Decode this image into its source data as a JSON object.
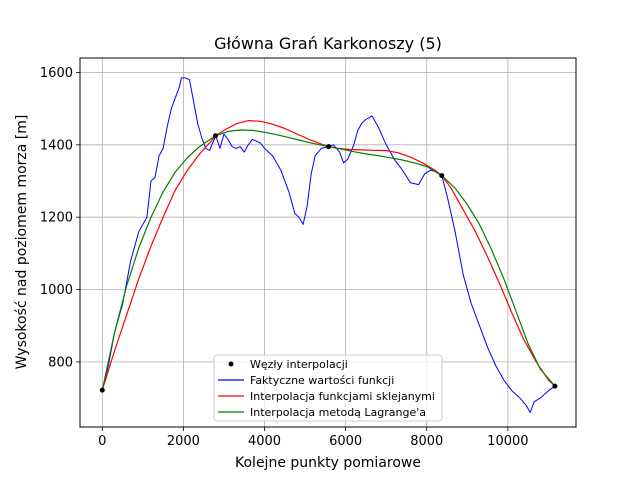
{
  "chart_data": {
    "type": "line",
    "title": "Główna Grań Karkonoszy (5)",
    "xlabel": "Kolejne punkty pomiarowe",
    "ylabel": "Wysokość nad poziomem morza [m]",
    "xlim": [
      -550,
      11680
    ],
    "ylim": [
      620,
      1640
    ],
    "xticks": [
      0,
      2000,
      4000,
      6000,
      8000,
      10000
    ],
    "yticks": [
      800,
      1000,
      1200,
      1400,
      1600
    ],
    "grid": true,
    "legend_position": "lower center",
    "nodes": {
      "name": "Węzły interpolacji",
      "color": "#000000",
      "x": [
        0,
        2790,
        5580,
        8370,
        11160
      ],
      "y": [
        722,
        1425,
        1395,
        1315,
        733
      ]
    },
    "series": [
      {
        "name": "Faktyczne wartości funkcji",
        "color": "#0000ff",
        "x": [
          0,
          150,
          300,
          500,
          700,
          900,
          1100,
          1200,
          1300,
          1400,
          1500,
          1600,
          1700,
          1800,
          1900,
          1950,
          2050,
          2150,
          2250,
          2350,
          2450,
          2550,
          2650,
          2700,
          2800,
          2900,
          3000,
          3100,
          3200,
          3300,
          3400,
          3500,
          3600,
          3700,
          3800,
          3900,
          4000,
          4200,
          4400,
          4600,
          4750,
          4850,
          4950,
          5050,
          5150,
          5250,
          5400,
          5580,
          5700,
          5850,
          5950,
          6050,
          6200,
          6300,
          6400,
          6500,
          6650,
          6800,
          7000,
          7200,
          7400,
          7600,
          7800,
          7950,
          8100,
          8250,
          8370,
          8500,
          8700,
          8900,
          9100,
          9300,
          9500,
          9700,
          9900,
          10100,
          10300,
          10450,
          10550,
          10650,
          10800,
          11000,
          11160
        ],
        "y": [
          722,
          790,
          880,
          960,
          1080,
          1160,
          1200,
          1300,
          1310,
          1370,
          1390,
          1450,
          1500,
          1530,
          1560,
          1585,
          1585,
          1580,
          1520,
          1460,
          1420,
          1390,
          1385,
          1400,
          1425,
          1390,
          1430,
          1415,
          1395,
          1390,
          1395,
          1380,
          1400,
          1415,
          1410,
          1405,
          1390,
          1370,
          1330,
          1270,
          1210,
          1200,
          1180,
          1230,
          1320,
          1370,
          1390,
          1395,
          1400,
          1380,
          1350,
          1360,
          1400,
          1440,
          1460,
          1470,
          1480,
          1450,
          1400,
          1360,
          1330,
          1295,
          1290,
          1320,
          1330,
          1325,
          1315,
          1260,
          1160,
          1040,
          960,
          900,
          840,
          790,
          750,
          720,
          700,
          680,
          660,
          690,
          700,
          720,
          733
        ]
      },
      {
        "name": "Interpolacja funkcjami sklejanymi",
        "color": "#ff0000",
        "x": [
          0,
          300,
          600,
          900,
          1200,
          1500,
          1800,
          2100,
          2400,
          2700,
          2790,
          3000,
          3300,
          3600,
          3900,
          4200,
          4500,
          4800,
          5100,
          5400,
          5580,
          5800,
          6100,
          6400,
          6700,
          7000,
          7300,
          7600,
          7900,
          8200,
          8370,
          8600,
          8900,
          9200,
          9500,
          9800,
          10100,
          10400,
          10700,
          11000,
          11160
        ],
        "y": [
          722,
          830,
          930,
          1030,
          1120,
          1200,
          1275,
          1330,
          1375,
          1412,
          1425,
          1440,
          1458,
          1467,
          1465,
          1457,
          1445,
          1430,
          1415,
          1402,
          1395,
          1390,
          1387,
          1386,
          1385,
          1384,
          1378,
          1366,
          1350,
          1330,
          1315,
          1280,
          1220,
          1160,
          1090,
          1015,
          935,
          860,
          800,
          750,
          733
        ]
      },
      {
        "name": "Interpolacja metodą Lagrange'a",
        "color": "#008000",
        "x": [
          0,
          300,
          600,
          900,
          1200,
          1500,
          1800,
          2100,
          2400,
          2790,
          3100,
          3400,
          3700,
          4000,
          4300,
          4600,
          4900,
          5200,
          5580,
          5900,
          6200,
          6500,
          6800,
          7100,
          7400,
          7700,
          8000,
          8370,
          8700,
          9000,
          9300,
          9600,
          9900,
          10200,
          10500,
          10800,
          11160
        ],
        "y": [
          722,
          880,
          1010,
          1115,
          1200,
          1270,
          1325,
          1365,
          1395,
          1425,
          1437,
          1441,
          1440,
          1435,
          1428,
          1420,
          1412,
          1404,
          1395,
          1388,
          1381,
          1375,
          1370,
          1364,
          1358,
          1350,
          1340,
          1315,
          1280,
          1235,
          1180,
          1110,
          1030,
          940,
          850,
          780,
          733
        ]
      }
    ]
  }
}
